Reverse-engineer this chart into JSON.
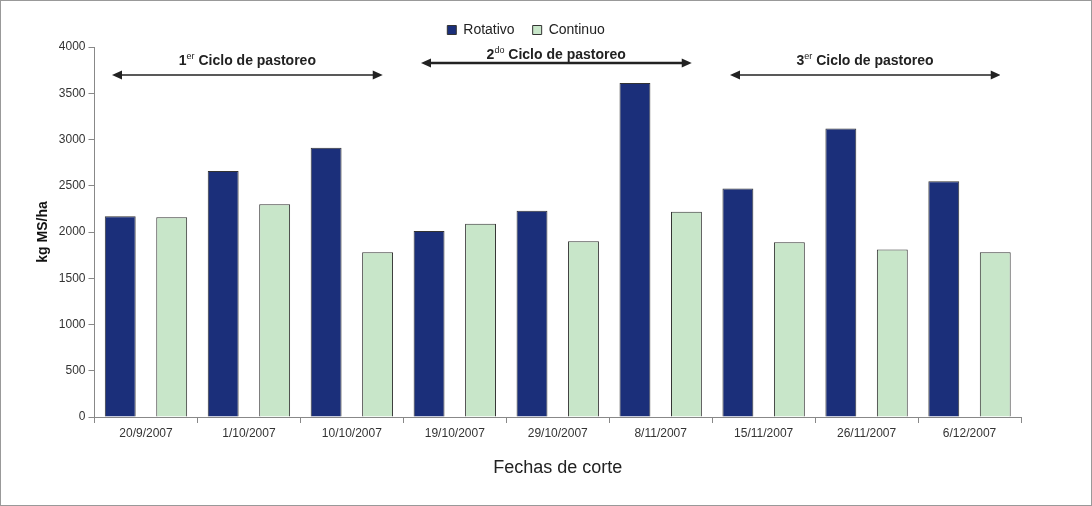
{
  "chart_data": {
    "type": "bar",
    "xlabel": "Fechas de corte",
    "ylabel": "kg MS/ha",
    "categories": [
      "20/9/2007",
      "1/10/2007",
      "10/10/2007",
      "19/10/2007",
      "29/10/2007",
      "8/11/2007",
      "15/11/2007",
      "26/11/2007",
      "6/12/2007"
    ],
    "series": [
      {
        "name": "Rotativo",
        "color": "#1b2f7a",
        "values": [
          2170,
          2660,
          2910,
          2010,
          2230,
          3610,
          2470,
          3120,
          2550
        ]
      },
      {
        "name": "Continuo",
        "color": "#c8e6c9",
        "values": [
          2160,
          2300,
          1780,
          2090,
          1900,
          2220,
          1890,
          1810,
          1780
        ]
      }
    ],
    "ylim": [
      0,
      4000
    ],
    "yticks": [
      0,
      500,
      1000,
      1500,
      2000,
      2500,
      3000,
      3500,
      4000
    ],
    "grid": false,
    "legend": "top",
    "annotations": [
      "1$^{er}$ Ciclo de pastoreo",
      "2$^{do}$ Ciclo de pastoreo",
      "3$^{er}$ Ciclo de pastoreo"
    ]
  }
}
